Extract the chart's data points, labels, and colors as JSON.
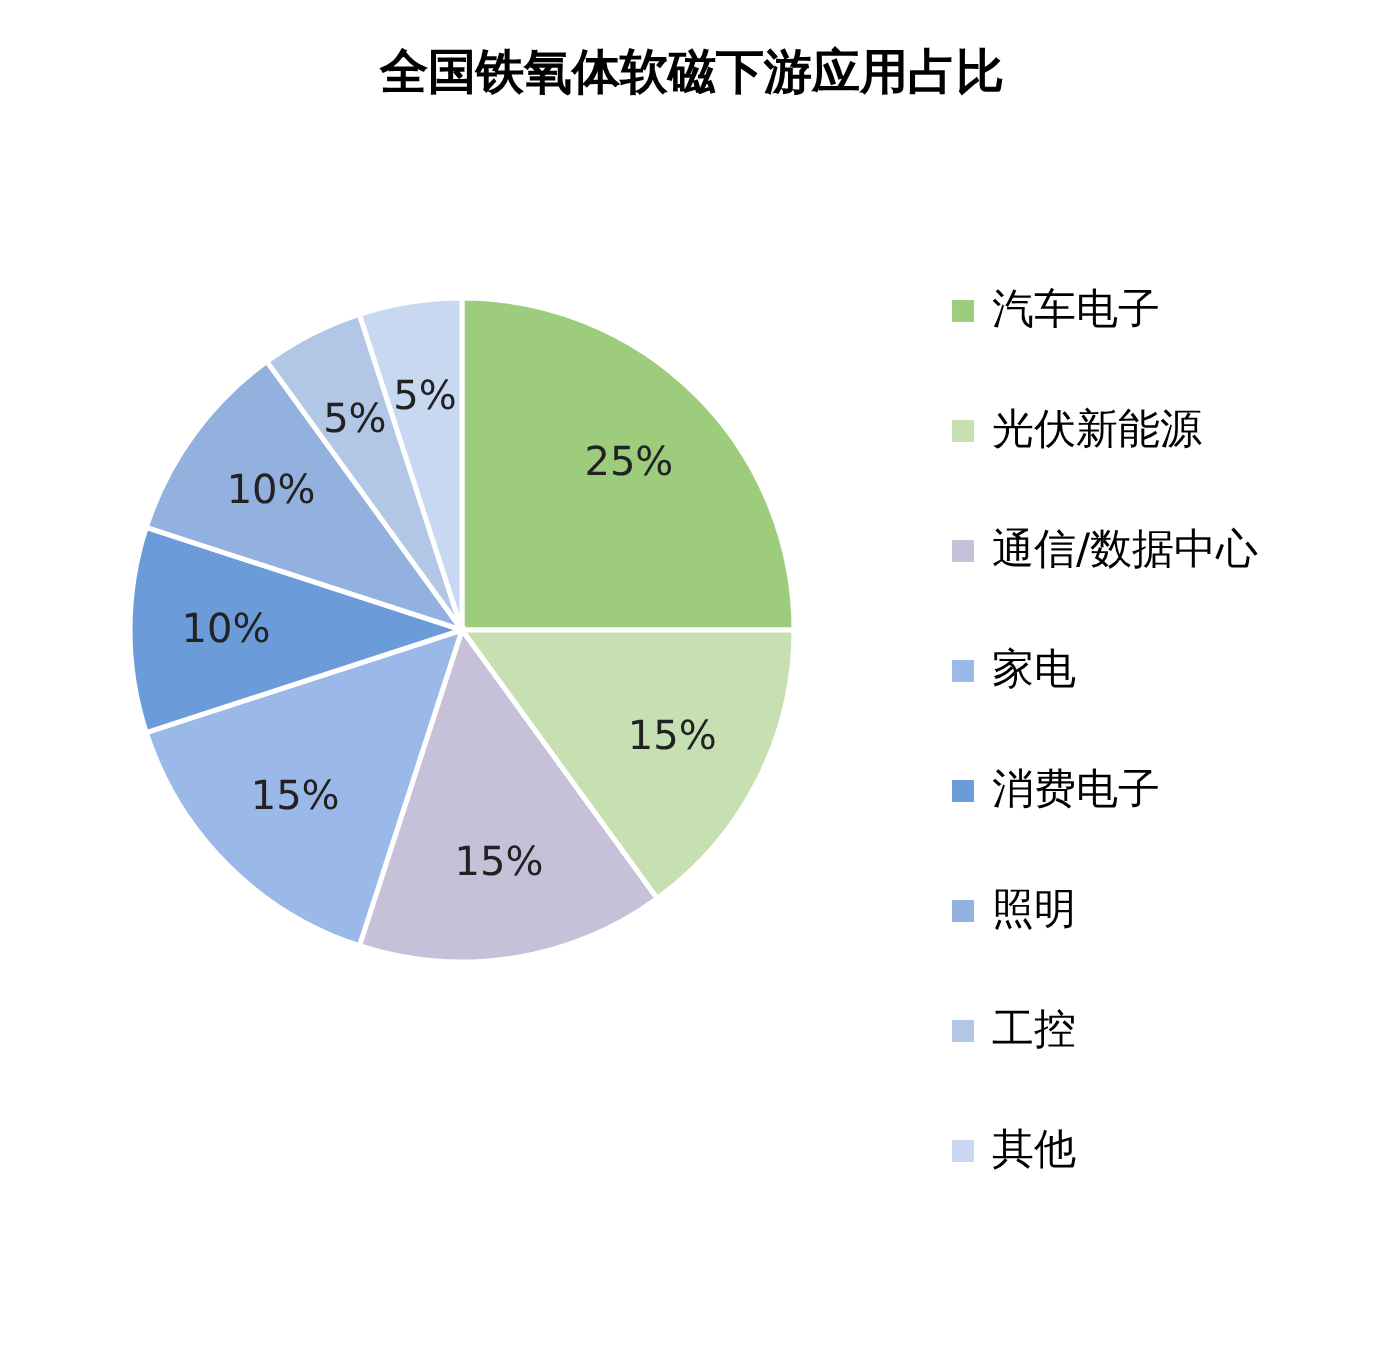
{
  "chart_data": {
    "type": "pie",
    "title": "全国铁氧体软磁下游应用占比",
    "categories": [
      "汽车电子",
      "光伏新能源",
      "通信/数据中心",
      "家电",
      "消费电子",
      "照明",
      "工控",
      "其他"
    ],
    "values": [
      25,
      15,
      15,
      15,
      10,
      10,
      5,
      5
    ],
    "value_labels": [
      "25%",
      "15%",
      "15%",
      "15%",
      "10%",
      "10%",
      "5%",
      "5%"
    ],
    "colors": [
      "#9ccc7c",
      "#c6e0b2",
      "#c6c1d8",
      "#9bb9e8",
      "#6b9bd8",
      "#92b1de",
      "#b2c6e6",
      "#c8d8f0"
    ],
    "legend": "right"
  }
}
